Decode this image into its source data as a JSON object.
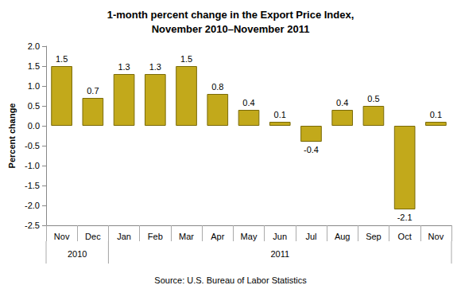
{
  "chart_data": {
    "type": "bar",
    "title": "1-month percent change in the Export Price Index,\nNovember 2010–November 2011",
    "y_label": "Percent change",
    "categories": [
      "Nov",
      "Dec",
      "Jan",
      "Feb",
      "Mar",
      "Apr",
      "May",
      "Jun",
      "Jul",
      "Aug",
      "Sep",
      "Oct",
      "Nov"
    ],
    "values": [
      1.5,
      0.7,
      1.3,
      1.3,
      1.5,
      0.8,
      0.4,
      0.1,
      -0.4,
      0.4,
      0.5,
      -2.1,
      0.1
    ],
    "x_groups": [
      {
        "label": "2010",
        "count": 2
      },
      {
        "label": "2011",
        "count": 11
      }
    ],
    "color": "#c2a91b",
    "ylim": [
      -2.5,
      2.0
    ],
    "yticks": [
      -2.5,
      {
        "value": -2,
        "label": "-2.0"
      },
      -1.5,
      {
        "value": -1,
        "label": "-1.0"
      },
      -0.5,
      {
        "value": 0,
        "label": "0.0"
      },
      0.5,
      {
        "value": 1,
        "label": "1.0"
      },
      1.5,
      {
        "value": 2,
        "label": "2.0"
      }
    ],
    "grid": false,
    "data_labels": true,
    "source": "Source: U.S. Bureau of Labor Statistics"
  }
}
